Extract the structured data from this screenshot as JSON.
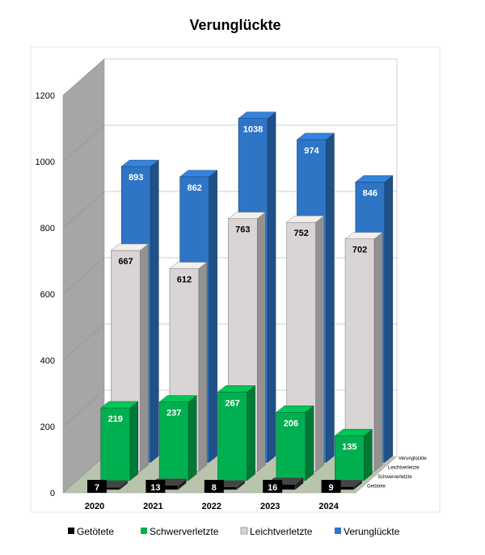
{
  "chart_data": {
    "type": "bar",
    "title": "Verunglückte",
    "categories": [
      "2020",
      "2021",
      "2022",
      "2023",
      "2024"
    ],
    "series": [
      {
        "name": "Getötete",
        "values": [
          7,
          13,
          8,
          16,
          9
        ],
        "color": "#000000"
      },
      {
        "name": "Schwerverletzte",
        "values": [
          219,
          237,
          267,
          206,
          135
        ],
        "color": "#00b050"
      },
      {
        "name": "Leichtverletzte",
        "values": [
          667,
          612,
          763,
          752,
          702
        ],
        "color": "#d9d5d5"
      },
      {
        "name": "Verunglückte",
        "values": [
          893,
          862,
          1038,
          974,
          846
        ],
        "color": "#2e75c6"
      }
    ],
    "yticks": [
      0,
      200,
      400,
      600,
      800,
      1000,
      1200
    ],
    "ylim": [
      0,
      1200
    ],
    "grid": true,
    "legend_position": "bottom",
    "depth_labels": [
      "Verunglückte",
      "Leichtverletzte",
      "Schwerverletzte",
      "Getötete"
    ]
  }
}
